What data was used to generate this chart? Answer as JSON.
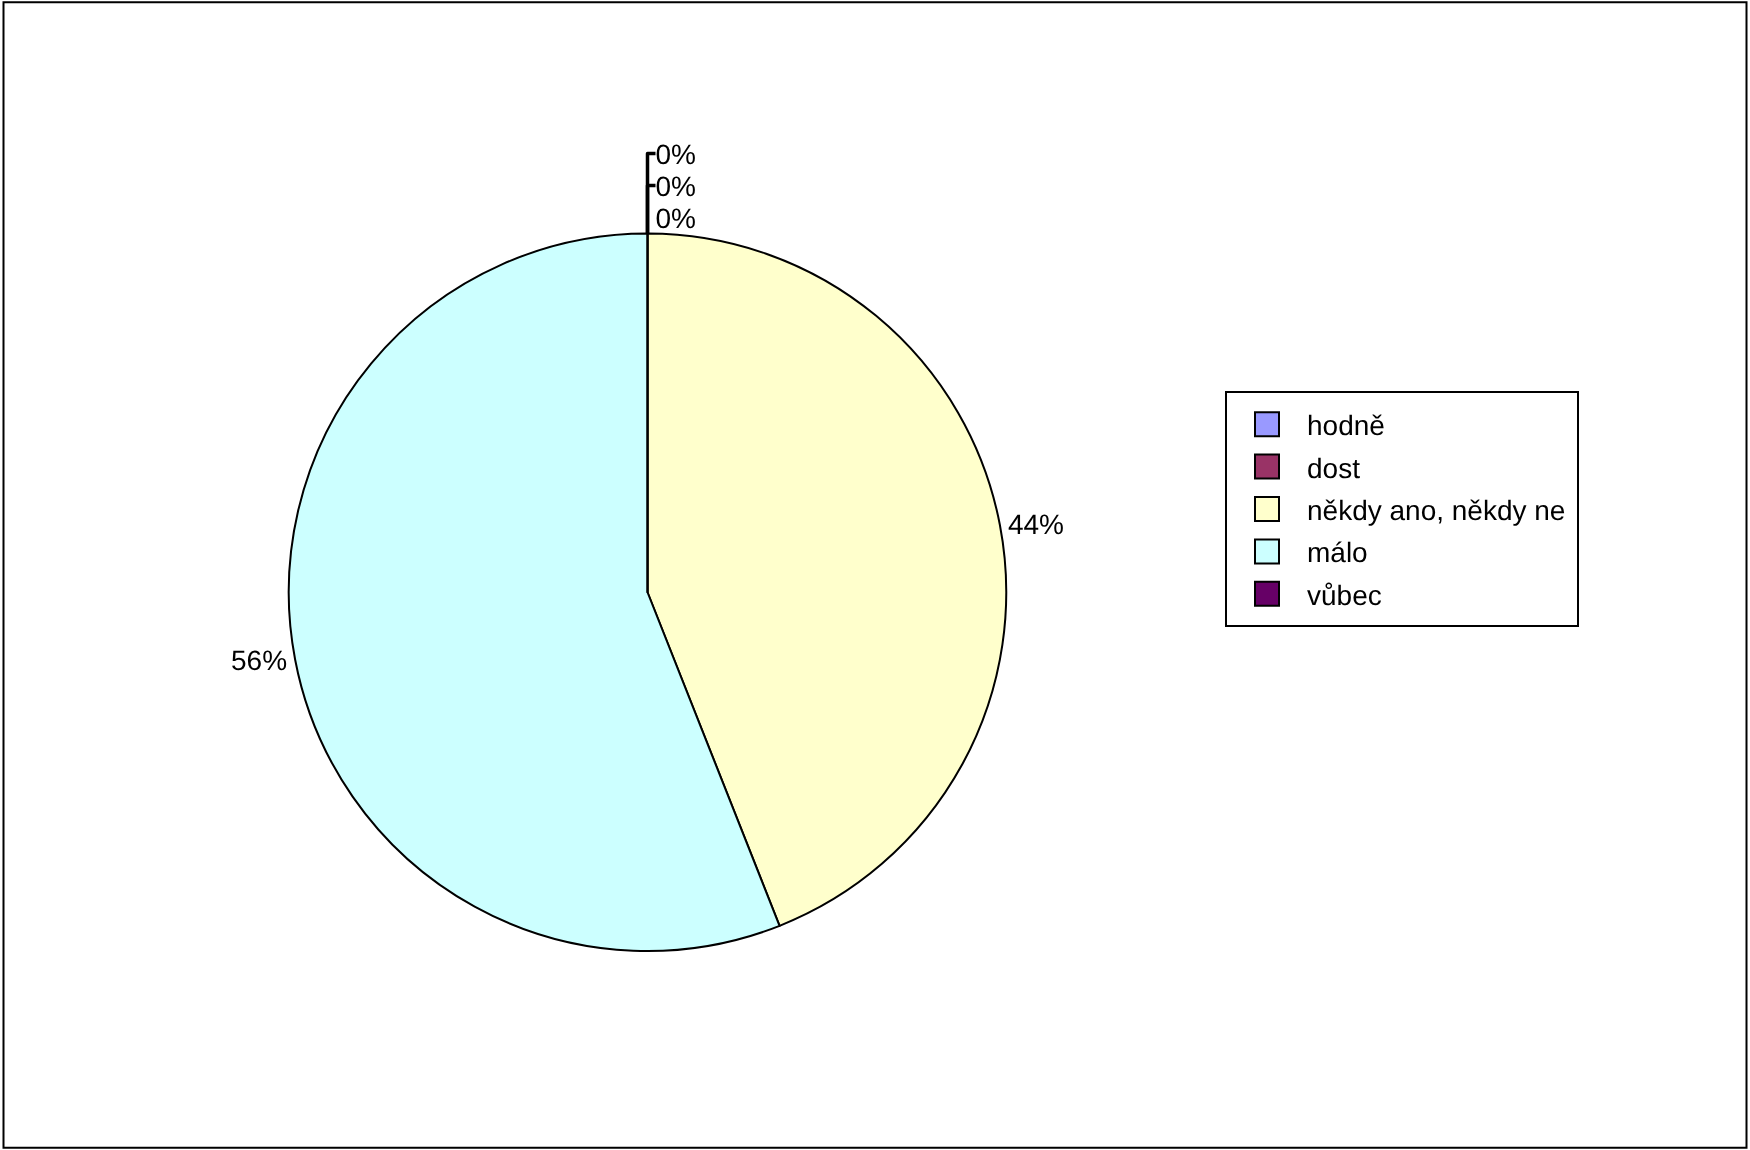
{
  "chart_data": {
    "type": "pie",
    "categories": [
      "hodně",
      "dost",
      "někdy ano, někdy ne",
      "málo",
      "vůbec"
    ],
    "values": [
      0,
      0,
      44,
      56,
      0
    ],
    "colors": [
      "#9999ff",
      "#993366",
      "#ffffcc",
      "#ccffff",
      "#660066"
    ],
    "value_labels": [
      "0%",
      "0%",
      "44%",
      "56%",
      "0%"
    ],
    "legend": "right"
  }
}
